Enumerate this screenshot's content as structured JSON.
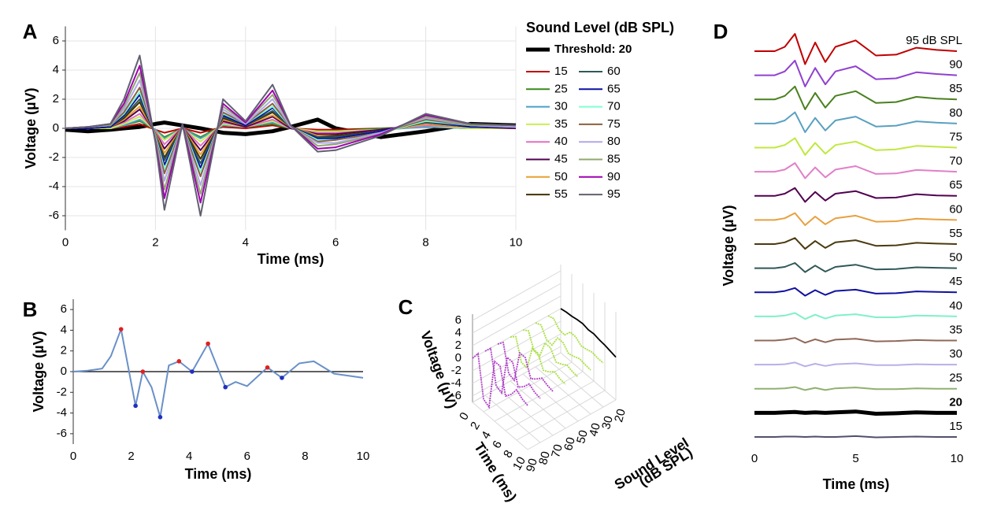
{
  "chart_data": [
    {
      "type": "line",
      "panel_label": "A",
      "xlabel": "Time (ms)",
      "ylabel": "Voltage (µV)",
      "xlim": [
        0,
        10
      ],
      "xticks": [
        0,
        2,
        4,
        6,
        8,
        10
      ],
      "ylim": [
        -7,
        7
      ],
      "yticks": [
        -6,
        -4,
        -2,
        0,
        2,
        4,
        6
      ],
      "grid": true,
      "legend_title": "Sound Level (dB SPL)",
      "x": [
        0,
        0.5,
        1,
        1.3,
        1.65,
        2.0,
        2.2,
        2.6,
        3.0,
        3.5,
        4.0,
        4.6,
        5.0,
        5.6,
        6.0,
        7.0,
        8.0,
        9.0,
        10
      ],
      "series": [
        {
          "name": "Threshold: 20",
          "color": "#000000",
          "width": 5,
          "values": [
            -0.1,
            -0.2,
            -0.1,
            0,
            0.1,
            0.3,
            0.4,
            0.2,
            0,
            -0.3,
            -0.4,
            -0.2,
            0.1,
            0.6,
            0,
            -0.6,
            -0.2,
            0.3,
            0.2
          ]
        },
        {
          "name": "15",
          "color": "#c00000",
          "values": [
            0,
            0,
            0,
            0.1,
            0.3,
            -0.1,
            -0.3,
            0,
            -0.3,
            0.1,
            0,
            0.2,
            0,
            -0.1,
            -0.1,
            0,
            0.1,
            0,
            0
          ]
        },
        {
          "name": "25",
          "color": "#3a8a1a",
          "values": [
            0,
            0,
            0,
            0.2,
            0.5,
            -0.1,
            -0.6,
            0,
            -0.6,
            0.2,
            0.1,
            0.3,
            0,
            -0.2,
            -0.2,
            0,
            0.1,
            0,
            0
          ]
        },
        {
          "name": "30",
          "color": "#4aa0c8",
          "values": [
            0,
            0,
            0,
            0.2,
            0.6,
            -0.1,
            -0.7,
            0,
            -0.7,
            0.2,
            0.1,
            0.4,
            0,
            -0.2,
            -0.2,
            -0.1,
            0.1,
            0,
            0
          ]
        },
        {
          "name": "35",
          "color": "#c8f050",
          "values": [
            0,
            0,
            0,
            0.3,
            0.8,
            -0.2,
            -0.8,
            0,
            -0.9,
            0.3,
            0.1,
            0.5,
            0,
            -0.2,
            -0.2,
            -0.1,
            0.2,
            0,
            0
          ]
        },
        {
          "name": "40",
          "color": "#e070c0",
          "values": [
            0,
            0,
            0.1,
            0.4,
            1.0,
            -0.2,
            -1.1,
            0.1,
            -1.2,
            0.4,
            0.1,
            0.6,
            0,
            -0.3,
            -0.3,
            -0.1,
            0.2,
            0.1,
            0
          ]
        },
        {
          "name": "45",
          "color": "#500050",
          "values": [
            0,
            0,
            0.1,
            0.5,
            1.3,
            -0.3,
            -1.4,
            0.1,
            -1.5,
            0.5,
            0.1,
            0.8,
            0,
            -0.4,
            -0.4,
            -0.1,
            0.3,
            0.1,
            0
          ]
        },
        {
          "name": "50",
          "color": "#e8a030",
          "values": [
            0,
            0,
            0.1,
            0.6,
            1.5,
            -0.3,
            -1.7,
            0.1,
            -1.8,
            0.6,
            0.2,
            0.9,
            0.1,
            -0.5,
            -0.5,
            -0.2,
            0.3,
            0.1,
            0.1
          ]
        },
        {
          "name": "55",
          "color": "#403000",
          "values": [
            0,
            0,
            0.1,
            0.7,
            1.8,
            -0.4,
            -2.0,
            0.1,
            -2.1,
            0.7,
            0.2,
            1.1,
            0.1,
            -0.6,
            -0.5,
            -0.2,
            0.4,
            0.1,
            0.1
          ]
        },
        {
          "name": "60",
          "color": "#305858",
          "values": [
            0,
            0,
            0.1,
            0.8,
            2.0,
            -0.4,
            -2.2,
            0.1,
            -2.4,
            0.8,
            0.2,
            1.2,
            0.1,
            -0.6,
            -0.6,
            -0.2,
            0.4,
            0.1,
            0.1
          ]
        },
        {
          "name": "65",
          "color": "#0a10a0",
          "values": [
            0,
            0,
            0.1,
            0.9,
            2.3,
            -0.5,
            -2.5,
            0.1,
            -2.7,
            0.9,
            0.2,
            1.4,
            0.1,
            -0.7,
            -0.7,
            -0.2,
            0.5,
            0.1,
            0.1
          ]
        },
        {
          "name": "70",
          "color": "#80ffd0",
          "values": [
            0,
            0.1,
            0.2,
            1.0,
            2.5,
            -0.5,
            -2.8,
            0.2,
            -3.0,
            1.0,
            0.3,
            1.5,
            0.1,
            -0.8,
            -0.8,
            -0.3,
            0.5,
            0.2,
            0.1
          ]
        },
        {
          "name": "75",
          "color": "#8a6040",
          "values": [
            0,
            0.1,
            0.2,
            1.1,
            2.8,
            -0.6,
            -3.1,
            0.2,
            -3.3,
            1.1,
            0.3,
            1.7,
            0.1,
            -0.9,
            -0.8,
            -0.3,
            0.6,
            0.2,
            0.1
          ]
        },
        {
          "name": "80",
          "color": "#b0a8e8",
          "values": [
            0,
            0.1,
            0.2,
            1.3,
            3.3,
            -0.7,
            -3.6,
            0.2,
            -3.9,
            1.3,
            0.3,
            2.0,
            0.1,
            -1.0,
            -1.0,
            -0.3,
            0.7,
            0.2,
            0.1
          ]
        },
        {
          "name": "85",
          "color": "#90a870",
          "values": [
            0,
            0.1,
            0.2,
            1.5,
            3.8,
            -0.8,
            -4.2,
            0.2,
            -4.5,
            1.5,
            0.4,
            2.3,
            0.2,
            -1.2,
            -1.1,
            -0.4,
            0.8,
            0.2,
            0.2
          ]
        },
        {
          "name": "90",
          "color": "#a000b0",
          "values": [
            0,
            0.1,
            0.3,
            1.7,
            4.3,
            -0.9,
            -4.8,
            0.3,
            -5.1,
            1.7,
            0.4,
            2.6,
            0.2,
            -1.4,
            -1.3,
            -0.4,
            0.9,
            0.3,
            0.2
          ]
        },
        {
          "name": "95",
          "color": "#606070",
          "values": [
            0,
            0.1,
            0.3,
            2.0,
            5.0,
            -1.0,
            -5.6,
            0.3,
            -6.0,
            2.0,
            0.5,
            3.0,
            0.2,
            -1.6,
            -1.5,
            -0.5,
            1.0,
            0.3,
            0.2
          ]
        }
      ]
    },
    {
      "type": "line",
      "panel_label": "B",
      "xlabel": "Time (ms)",
      "ylabel": "Voltage (µV)",
      "xlim": [
        0,
        10
      ],
      "xticks": [
        0,
        2,
        4,
        6,
        8,
        10
      ],
      "ylim": [
        -7,
        7
      ],
      "yticks": [
        -6,
        -4,
        -2,
        0,
        2,
        4,
        6
      ],
      "grid": false,
      "zeroline": true,
      "series": [
        {
          "color": "#6a90c8",
          "x": [
            0,
            0.5,
            1,
            1.3,
            1.65,
            2.15,
            2.4,
            2.7,
            3.0,
            3.3,
            3.65,
            4.1,
            4.65,
            5.25,
            5.6,
            6.0,
            6.7,
            7.2,
            7.8,
            8.3,
            9.0,
            10
          ],
          "values": [
            0,
            0.1,
            0.3,
            1.5,
            4.1,
            -3.3,
            0,
            -1.5,
            -4.4,
            0.6,
            1.0,
            0,
            2.7,
            -1.5,
            -1.0,
            -1.4,
            0.4,
            -0.6,
            0.8,
            1.0,
            -0.2,
            -0.6
          ]
        },
        {
          "color": "#e02020",
          "marker": "dot",
          "x": [
            1.65,
            2.4,
            3.65,
            4.65,
            6.7
          ],
          "values": [
            4.1,
            0,
            1.0,
            2.7,
            0.4
          ]
        },
        {
          "color": "#2030c0",
          "marker": "dot",
          "x": [
            2.15,
            3.0,
            4.1,
            5.25,
            7.2
          ],
          "values": [
            -3.3,
            -4.4,
            0,
            -1.5,
            -0.6
          ]
        }
      ]
    },
    {
      "type": "waterfall3d",
      "panel_label": "C",
      "xlabel": "Time (ms)",
      "ylabel": [
        "Sound Level",
        "(dB SPL)"
      ],
      "zlabel": "Voltage (µV)",
      "xlim": [
        0,
        10
      ],
      "xticks": [
        0,
        2,
        4,
        6,
        8,
        10
      ],
      "ylim": [
        20,
        90
      ],
      "yticks": [
        90,
        80,
        70,
        60,
        50,
        40,
        30,
        20
      ],
      "zlim": [
        -7,
        7
      ],
      "zticks": [
        6,
        4,
        2,
        0,
        -2,
        -4,
        -6
      ],
      "x": [
        0,
        1,
        2,
        3,
        4,
        5,
        6,
        7,
        8,
        9,
        10
      ],
      "series": [
        {
          "level": 90,
          "color": "#b040c8",
          "values": [
            0,
            1.5,
            -5,
            -5.5,
            2.5,
            2.5,
            -1.5,
            -0.5,
            1,
            0.3,
            0
          ]
        },
        {
          "level": 80,
          "color": "#b040c8",
          "values": [
            0,
            1.2,
            -4,
            -4.4,
            2,
            2,
            -1.2,
            -0.4,
            0.8,
            0.2,
            0
          ]
        },
        {
          "level": 70,
          "color": "#b040c8",
          "values": [
            0,
            1,
            -3.2,
            -3.5,
            1.6,
            1.6,
            -1,
            -0.3,
            0.6,
            0.2,
            0
          ]
        },
        {
          "level": 60,
          "color": "#a8e040",
          "values": [
            0,
            0.8,
            -2.5,
            -2.7,
            1.2,
            1.2,
            -0.8,
            -0.3,
            0.5,
            0.1,
            0
          ]
        },
        {
          "level": 50,
          "color": "#a8e040",
          "values": [
            0,
            0.6,
            -1.8,
            -2,
            0.9,
            0.9,
            -0.6,
            -0.2,
            0.4,
            0.1,
            0
          ]
        },
        {
          "level": 40,
          "color": "#a8e040",
          "values": [
            0,
            0.4,
            -1.2,
            -1.3,
            0.6,
            0.6,
            -0.4,
            -0.1,
            0.3,
            0.1,
            0
          ]
        },
        {
          "level": 30,
          "color": "#a8e040",
          "values": [
            0,
            0.3,
            -0.7,
            -0.8,
            0.4,
            0.4,
            -0.3,
            -0.1,
            0.2,
            0,
            0
          ]
        },
        {
          "level": 20,
          "color": "#000000",
          "values": [
            0,
            0.2,
            0.3,
            0.5,
            0.6,
            0.4,
            0.5,
            0.3,
            0.2,
            0,
            -0.2
          ]
        }
      ]
    },
    {
      "type": "traces",
      "panel_label": "D",
      "xlabel": "Time (ms)",
      "ylabel": "Voltage (µV)",
      "xlim": [
        0,
        10
      ],
      "xticks": [
        0,
        5,
        10
      ],
      "x": [
        0,
        1,
        1.5,
        2,
        2.5,
        3,
        3.5,
        4,
        5,
        6,
        7,
        8,
        9,
        10
      ],
      "series": [
        {
          "name": "95 dB SPL",
          "color": "#c00000",
          "values": [
            0,
            0,
            1,
            4,
            -3,
            2,
            -2.5,
            1,
            2.5,
            -1,
            -0.8,
            0.8,
            0.3,
            0
          ]
        },
        {
          "name": "90",
          "color": "#9040d0",
          "values": [
            0,
            0,
            0.9,
            3.4,
            -2.6,
            1.7,
            -2.1,
            0.9,
            2.1,
            -0.9,
            -0.7,
            0.7,
            0.3,
            0
          ]
        },
        {
          "name": "85",
          "color": "#4a8020",
          "values": [
            0,
            0,
            0.8,
            3,
            -2.3,
            1.5,
            -1.9,
            0.8,
            1.9,
            -0.8,
            -0.6,
            0.6,
            0.2,
            0
          ]
        },
        {
          "name": "80",
          "color": "#5aa0c0",
          "values": [
            0,
            0,
            0.7,
            2.6,
            -2,
            1.3,
            -1.6,
            0.7,
            1.6,
            -0.7,
            -0.5,
            0.5,
            0.2,
            0
          ]
        },
        {
          "name": "75",
          "color": "#c0e840",
          "values": [
            0,
            0,
            0.6,
            2.2,
            -1.7,
            1.1,
            -1.4,
            0.6,
            1.4,
            -0.6,
            -0.4,
            0.4,
            0.2,
            0
          ]
        },
        {
          "name": "70",
          "color": "#e080c8",
          "values": [
            0,
            0,
            0.5,
            2,
            -1.5,
            1,
            -1.3,
            0.5,
            1.3,
            -0.5,
            -0.4,
            0.4,
            0.2,
            0
          ]
        },
        {
          "name": "65",
          "color": "#500050",
          "values": [
            0,
            0,
            0.5,
            1.8,
            -1.4,
            0.9,
            -1.1,
            0.5,
            1.1,
            -0.5,
            -0.4,
            0.4,
            0.1,
            0
          ]
        },
        {
          "name": "60",
          "color": "#e8a040",
          "values": [
            0,
            0,
            0.4,
            1.6,
            -1.2,
            0.8,
            -1,
            0.4,
            1,
            -0.4,
            -0.3,
            0.3,
            0.1,
            0
          ]
        },
        {
          "name": "55",
          "color": "#4a3a10",
          "values": [
            0,
            0,
            0.4,
            1.4,
            -1.1,
            0.7,
            -0.9,
            0.4,
            0.9,
            -0.4,
            -0.3,
            0.3,
            0.1,
            0
          ]
        },
        {
          "name": "50",
          "color": "#305858",
          "values": [
            0,
            0,
            0.3,
            1.2,
            -0.9,
            0.6,
            -0.8,
            0.3,
            0.8,
            -0.3,
            -0.2,
            0.2,
            0.1,
            0
          ]
        },
        {
          "name": "45",
          "color": "#1010a0",
          "values": [
            0,
            0,
            0.3,
            1,
            -0.8,
            0.5,
            -0.6,
            0.3,
            0.6,
            -0.3,
            -0.2,
            0.2,
            0.1,
            0
          ]
        },
        {
          "name": "40",
          "color": "#80f0c8",
          "values": [
            0,
            0,
            0.2,
            0.8,
            -0.6,
            0.4,
            -0.5,
            0.2,
            0.5,
            -0.2,
            -0.2,
            0.2,
            0.1,
            0
          ]
        },
        {
          "name": "35",
          "color": "#906858",
          "values": [
            0,
            0,
            0.2,
            0.6,
            -0.5,
            0.3,
            -0.4,
            0.2,
            0.4,
            -0.2,
            -0.1,
            0.1,
            0,
            0
          ]
        },
        {
          "name": "30",
          "color": "#b8b0e8",
          "values": [
            0,
            0,
            0.1,
            0.5,
            -0.4,
            0.2,
            -0.3,
            0.1,
            0.3,
            -0.1,
            -0.1,
            0.1,
            0,
            0
          ]
        },
        {
          "name": "25",
          "color": "#90b070",
          "values": [
            0,
            0,
            0.1,
            0.4,
            -0.3,
            0.2,
            -0.3,
            0.1,
            0.3,
            -0.1,
            -0.1,
            0.1,
            0,
            0
          ]
        },
        {
          "name": "20",
          "color": "#000000",
          "width": 5,
          "values": [
            0,
            0,
            0.1,
            0.2,
            0,
            0.1,
            0,
            0.1,
            0.3,
            -0.2,
            -0.1,
            0.1,
            0,
            0
          ]
        },
        {
          "name": "15",
          "color": "#505070",
          "values": [
            0,
            0,
            0.1,
            0.1,
            0,
            0.1,
            0,
            0,
            0.2,
            -0.1,
            0,
            0.1,
            0,
            0
          ]
        }
      ]
    }
  ]
}
